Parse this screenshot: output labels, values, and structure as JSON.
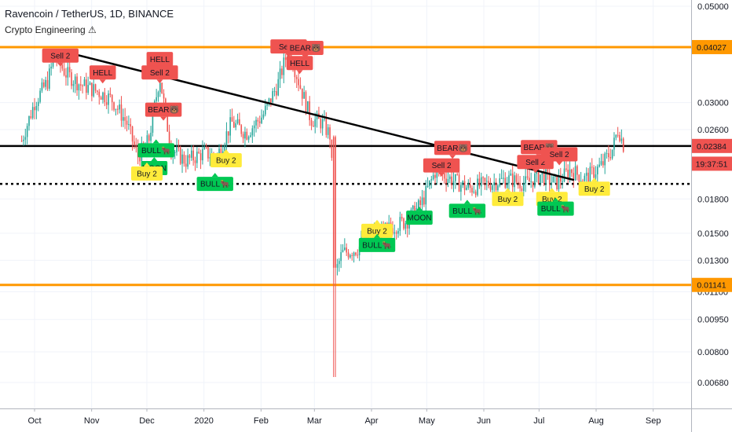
{
  "header": {
    "title": "Ravencoin / TetherUS, 1D, BINANCE",
    "indicator": "Crypto Engineering ⚠"
  },
  "chart_data": {
    "type": "candlestick",
    "price_axis": {
      "scale": "log",
      "ylim": [
        0.0062,
        0.0515
      ],
      "ticks": [
        "0.05000",
        "0.03000",
        "0.02600",
        "0.01800",
        "0.01500",
        "0.01300",
        "0.01100",
        "0.00950",
        "0.00800",
        "0.00680"
      ]
    },
    "time_axis": {
      "labels": [
        "Oct",
        "Nov",
        "Dec",
        "2020",
        "Feb",
        "Mar",
        "Apr",
        "May",
        "Jun",
        "Jul",
        "Aug",
        "Sep"
      ]
    },
    "price_tags": [
      {
        "label": "0.04027",
        "value": 0.04027,
        "bg": "#ff9800",
        "fg": "#131722"
      },
      {
        "label": "0.02384",
        "value": 0.02384,
        "bg": "#ef5350",
        "fg": "#ffffff"
      },
      {
        "label": "19:37:51",
        "value": 0.0217,
        "bg": "#ef5350",
        "fg": "#ffffff"
      },
      {
        "label": "0.01141",
        "value": 0.01141,
        "bg": "#ff9800",
        "fg": "#131722"
      }
    ],
    "levels": [
      {
        "value": 0.04027,
        "color": "#ff9800",
        "style": "solid"
      },
      {
        "value": 0.02384,
        "color": "#000000",
        "style": "solid"
      },
      {
        "value": 0.0195,
        "color": "#000000",
        "style": "dotted"
      },
      {
        "value": 0.01141,
        "color": "#ff9800",
        "style": "solid"
      }
    ],
    "trendline": {
      "from": {
        "t": "2019-10-15",
        "price": 0.0395
      },
      "to": {
        "t": "2020-07-20",
        "price": 0.0199
      }
    },
    "colors": {
      "up": "#26a69a",
      "down": "#ef5350",
      "sell": "#ef5350",
      "buy": "#ffeb3b",
      "bull": "#00c853"
    },
    "signals": [
      {
        "t": "2019-10-15",
        "price": 0.0385,
        "label": "Sell 2",
        "kind": "sell"
      },
      {
        "t": "2019-11-07",
        "price": 0.0352,
        "label": "HELL",
        "kind": "sell"
      },
      {
        "t": "2019-12-08",
        "price": 0.0378,
        "label": "HELL",
        "kind": "sell"
      },
      {
        "t": "2019-12-08",
        "price": 0.0352,
        "label": "Sell 2",
        "kind": "sell"
      },
      {
        "t": "2019-12-10",
        "price": 0.0289,
        "label": "BEAR🐻",
        "kind": "sell"
      },
      {
        "t": "2019-12-06",
        "price": 0.0233,
        "label": "BULL🐂",
        "kind": "bull"
      },
      {
        "t": "2019-12-05",
        "price": 0.0212,
        "label": "MOON",
        "kind": "bull"
      },
      {
        "t": "2019-12-01",
        "price": 0.0206,
        "label": "Buy 2",
        "kind": "buy"
      },
      {
        "t": "2020-01-13",
        "price": 0.0221,
        "label": "Buy 2",
        "kind": "buy"
      },
      {
        "t": "2020-01-07",
        "price": 0.0195,
        "label": "BULL🐂",
        "kind": "bull"
      },
      {
        "t": "2020-02-16",
        "price": 0.0404,
        "label": "Sell 2",
        "kind": "sell"
      },
      {
        "t": "2020-02-25",
        "price": 0.0401,
        "label": "BEAR🐻",
        "kind": "sell"
      },
      {
        "t": "2020-02-22",
        "price": 0.037,
        "label": "HELL",
        "kind": "sell"
      },
      {
        "t": "2020-05-15",
        "price": 0.0236,
        "label": "BEAR🐻",
        "kind": "sell"
      },
      {
        "t": "2020-05-09",
        "price": 0.0215,
        "label": "Sell 2",
        "kind": "sell"
      },
      {
        "t": "2020-05-23",
        "price": 0.0169,
        "label": "BULL🐂",
        "kind": "bull"
      },
      {
        "t": "2020-04-27",
        "price": 0.0163,
        "label": "MOON",
        "kind": "bull"
      },
      {
        "t": "2020-04-04",
        "price": 0.0152,
        "label": "Buy 2",
        "kind": "buy"
      },
      {
        "t": "2020-04-04",
        "price": 0.0141,
        "label": "BULL🐂",
        "kind": "bull"
      },
      {
        "t": "2020-06-14",
        "price": 0.018,
        "label": "Buy 2",
        "kind": "buy"
      },
      {
        "t": "2020-07-01",
        "price": 0.0237,
        "label": "BEAR🐻",
        "kind": "sell"
      },
      {
        "t": "2020-06-29",
        "price": 0.0219,
        "label": "Sell 2",
        "kind": "sell"
      },
      {
        "t": "2020-07-12",
        "price": 0.0228,
        "label": "Sell 2",
        "kind": "sell"
      },
      {
        "t": "2020-07-08",
        "price": 0.018,
        "label": "Buy 2",
        "kind": "buy"
      },
      {
        "t": "2020-07-10",
        "price": 0.0171,
        "label": "BULL🐂",
        "kind": "bull"
      },
      {
        "t": "2020-07-31",
        "price": 0.019,
        "label": "Buy 2",
        "kind": "buy"
      }
    ],
    "close_series": [
      {
        "t": "2019-09-24",
        "price": 0.0245
      },
      {
        "t": "2019-10-01",
        "price": 0.03
      },
      {
        "t": "2019-10-08",
        "price": 0.0335
      },
      {
        "t": "2019-10-12",
        "price": 0.0385
      },
      {
        "t": "2019-10-18",
        "price": 0.035
      },
      {
        "t": "2019-10-26",
        "price": 0.033
      },
      {
        "t": "2019-11-03",
        "price": 0.032
      },
      {
        "t": "2019-11-12",
        "price": 0.0305
      },
      {
        "t": "2019-11-20",
        "price": 0.027
      },
      {
        "t": "2019-11-26",
        "price": 0.0225
      },
      {
        "t": "2019-12-02",
        "price": 0.0245
      },
      {
        "t": "2019-12-08",
        "price": 0.0345
      },
      {
        "t": "2019-12-14",
        "price": 0.0235
      },
      {
        "t": "2019-12-22",
        "price": 0.022
      },
      {
        "t": "2020-01-01",
        "price": 0.023
      },
      {
        "t": "2020-01-08",
        "price": 0.0225
      },
      {
        "t": "2020-01-16",
        "price": 0.027
      },
      {
        "t": "2020-01-24",
        "price": 0.0255
      },
      {
        "t": "2020-02-02",
        "price": 0.028
      },
      {
        "t": "2020-02-10",
        "price": 0.033
      },
      {
        "t": "2020-02-16",
        "price": 0.04
      },
      {
        "t": "2020-02-22",
        "price": 0.033
      },
      {
        "t": "2020-02-28",
        "price": 0.0275
      },
      {
        "t": "2020-03-05",
        "price": 0.027
      },
      {
        "t": "2020-03-10",
        "price": 0.025
      },
      {
        "t": "2020-03-12",
        "price": 0.012
      },
      {
        "t": "2020-03-16",
        "price": 0.0135
      },
      {
        "t": "2020-03-24",
        "price": 0.0138
      },
      {
        "t": "2020-04-02",
        "price": 0.0148
      },
      {
        "t": "2020-04-12",
        "price": 0.0155
      },
      {
        "t": "2020-04-20",
        "price": 0.016
      },
      {
        "t": "2020-04-28",
        "price": 0.0175
      },
      {
        "t": "2020-05-06",
        "price": 0.021
      },
      {
        "t": "2020-05-14",
        "price": 0.02
      },
      {
        "t": "2020-05-24",
        "price": 0.019
      },
      {
        "t": "2020-06-03",
        "price": 0.0195
      },
      {
        "t": "2020-06-14",
        "price": 0.02
      },
      {
        "t": "2020-06-24",
        "price": 0.0195
      },
      {
        "t": "2020-07-02",
        "price": 0.0205
      },
      {
        "t": "2020-07-10",
        "price": 0.0195
      },
      {
        "t": "2020-07-18",
        "price": 0.021
      },
      {
        "t": "2020-07-26",
        "price": 0.02
      },
      {
        "t": "2020-08-04",
        "price": 0.0215
      },
      {
        "t": "2020-08-10",
        "price": 0.0235
      },
      {
        "t": "2020-08-13",
        "price": 0.0262
      },
      {
        "t": "2020-08-16",
        "price": 0.0238
      }
    ]
  }
}
